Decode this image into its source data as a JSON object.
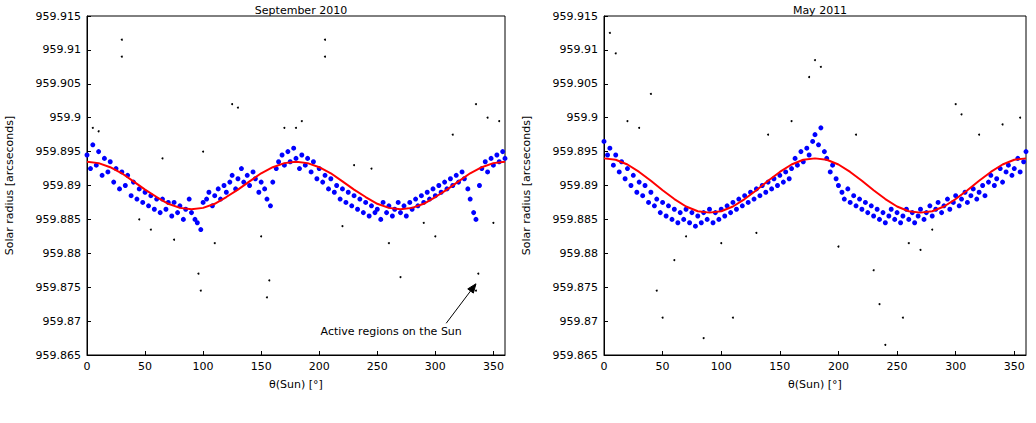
{
  "chart_data": [
    {
      "type": "scatter",
      "title": "September 2010",
      "x_label": "θ(Sun) [°]",
      "y_label": "Solar radius [arcseconds]",
      "xlim": [
        0,
        360
      ],
      "xticks": [
        0,
        50,
        100,
        150,
        200,
        250,
        300,
        350
      ],
      "ylim": [
        959.865,
        959.915
      ],
      "yticks": [
        959.865,
        959.87,
        959.875,
        959.88,
        959.885,
        959.89,
        959.895,
        959.9,
        959.905,
        959.91,
        959.915
      ],
      "grid": false,
      "series": [
        {
          "type": "scatter",
          "color": "#000000",
          "marker": "point",
          "x": [
            30,
            30,
            205,
            205,
            155,
            157,
            335,
            337,
            98,
            96,
            270,
            125,
            130,
            335,
            345,
            10,
            55,
            75,
            110,
            180,
            220,
            290,
            315,
            355,
            65,
            245,
            5,
            185,
            260,
            100,
            170,
            45,
            150,
            230,
            300,
            350
          ],
          "values": [
            959.9115,
            959.909,
            959.9115,
            959.909,
            959.8735,
            959.876,
            959.8745,
            959.877,
            959.8745,
            959.877,
            959.8765,
            959.902,
            959.9015,
            959.902,
            959.9,
            959.898,
            959.8835,
            959.882,
            959.8815,
            959.8985,
            959.884,
            959.8845,
            959.8975,
            959.8995,
            959.894,
            959.8925,
            959.8985,
            959.8995,
            959.8815,
            959.895,
            959.8985,
            959.885,
            959.8825,
            959.893,
            959.8825,
            959.8845
          ]
        },
        {
          "type": "scatter",
          "color": "#0000ff",
          "marker": "circle",
          "x": [
            0,
            3,
            5,
            8,
            10,
            13,
            15,
            18,
            20,
            23,
            25,
            28,
            30,
            33,
            35,
            38,
            40,
            43,
            45,
            48,
            50,
            53,
            55,
            58,
            60,
            63,
            65,
            68,
            70,
            73,
            75,
            78,
            80,
            83,
            85,
            88,
            90,
            93,
            95,
            98,
            100,
            103,
            105,
            108,
            110,
            113,
            115,
            118,
            120,
            123,
            125,
            128,
            130,
            133,
            135,
            138,
            140,
            143,
            145,
            148,
            150,
            153,
            155,
            158,
            160,
            163,
            165,
            168,
            170,
            173,
            175,
            178,
            180,
            183,
            185,
            188,
            190,
            193,
            195,
            198,
            200,
            203,
            205,
            208,
            210,
            213,
            215,
            218,
            220,
            223,
            225,
            228,
            230,
            233,
            235,
            238,
            240,
            243,
            245,
            248,
            250,
            253,
            255,
            258,
            260,
            263,
            265,
            268,
            270,
            273,
            275,
            278,
            280,
            283,
            285,
            288,
            290,
            293,
            295,
            298,
            300,
            303,
            305,
            308,
            310,
            313,
            315,
            318,
            320,
            323,
            325,
            328,
            330,
            333,
            335,
            338,
            340,
            343,
            345,
            348,
            350,
            353,
            355,
            358,
            360
          ],
          "values": [
            959.8945,
            959.8925,
            959.896,
            959.893,
            959.895,
            959.8915,
            959.894,
            959.892,
            959.8935,
            959.8905,
            959.8925,
            959.8895,
            959.892,
            959.89,
            959.8915,
            959.8885,
            959.8905,
            959.888,
            959.8895,
            959.8875,
            959.889,
            959.887,
            959.8885,
            959.8865,
            959.888,
            959.886,
            959.888,
            959.8865,
            959.8875,
            959.8855,
            959.8875,
            959.886,
            959.887,
            959.885,
            959.8865,
            959.888,
            959.886,
            959.885,
            959.8845,
            959.8835,
            959.8875,
            959.888,
            959.889,
            959.887,
            959.8885,
            959.8895,
            959.888,
            959.89,
            959.889,
            959.8905,
            959.8915,
            959.8895,
            959.891,
            959.8925,
            959.8905,
            959.8915,
            959.89,
            959.892,
            959.891,
            959.889,
            959.8905,
            959.8895,
            959.888,
            959.887,
            959.8905,
            959.8925,
            959.8935,
            959.8945,
            959.893,
            959.895,
            959.8935,
            959.8955,
            959.894,
            959.8925,
            959.8945,
            959.893,
            959.894,
            959.892,
            959.8935,
            959.891,
            959.8925,
            959.8905,
            959.8915,
            959.8895,
            959.891,
            959.889,
            959.89,
            959.888,
            959.8895,
            959.8875,
            959.889,
            959.887,
            959.8885,
            959.8865,
            959.888,
            959.886,
            959.8875,
            959.8855,
            959.887,
            959.886,
            959.8865,
            959.885,
            959.8875,
            959.886,
            959.887,
            959.8855,
            959.8865,
            959.8875,
            959.886,
            959.887,
            959.8855,
            959.8875,
            959.8865,
            959.888,
            959.887,
            959.8885,
            959.8875,
            959.889,
            959.888,
            959.8895,
            959.8885,
            959.89,
            959.889,
            959.8905,
            959.8895,
            959.891,
            959.89,
            959.8915,
            959.8905,
            959.892,
            959.891,
            959.8895,
            959.888,
            959.886,
            959.885,
            959.89,
            959.8925,
            959.8935,
            959.892,
            959.894,
            959.893,
            959.8945,
            959.8935,
            959.895,
            959.894
          ]
        },
        {
          "type": "line",
          "color": "#ff0000",
          "marker": "none",
          "line_style": "solid",
          "x": [
            0,
            10,
            20,
            30,
            40,
            50,
            60,
            70,
            80,
            90,
            100,
            110,
            120,
            130,
            140,
            150,
            160,
            170,
            180,
            190,
            200,
            210,
            220,
            230,
            240,
            250,
            260,
            270,
            280,
            290,
            300,
            310,
            320,
            330,
            340,
            350,
            360
          ],
          "values": [
            959.8935,
            959.8933,
            959.8927,
            959.8918,
            959.8906,
            959.8894,
            959.8883,
            959.8873,
            959.8867,
            959.8865,
            959.8867,
            959.8873,
            959.8883,
            959.8894,
            959.8906,
            959.8918,
            959.8927,
            959.8933,
            959.8935,
            959.8933,
            959.8927,
            959.8918,
            959.8906,
            959.8894,
            959.8883,
            959.8873,
            959.8867,
            959.8865,
            959.8867,
            959.8873,
            959.8883,
            959.8894,
            959.8906,
            959.8918,
            959.8927,
            959.8933,
            959.8935
          ]
        }
      ],
      "annotations": [
        {
          "text": "Active regions on the Sun",
          "xy": [
            335,
            959.8755
          ],
          "xytext": [
            262,
            959.8685
          ]
        }
      ]
    },
    {
      "type": "scatter",
      "title": "May 2011",
      "x_label": "θ(Sun) [°]",
      "y_label": "Solar radius [arcseconds]",
      "xlim": [
        0,
        360
      ],
      "xticks": [
        0,
        50,
        100,
        150,
        200,
        250,
        300,
        350
      ],
      "ylim": [
        959.865,
        959.915
      ],
      "yticks": [
        959.865,
        959.87,
        959.875,
        959.88,
        959.885,
        959.89,
        959.895,
        959.9,
        959.905,
        959.91,
        959.915
      ],
      "grid": false,
      "series": [
        {
          "type": "scatter",
          "color": "#000000",
          "marker": "point",
          "x": [
            5,
            10,
            40,
            180,
            185,
            175,
            60,
            45,
            50,
            85,
            110,
            230,
            235,
            240,
            255,
            280,
            300,
            305,
            355,
            20,
            30,
            70,
            100,
            140,
            160,
            200,
            260,
            320,
            340,
            130,
            215,
            270
          ],
          "values": [
            959.9125,
            959.9095,
            959.9035,
            959.9085,
            959.9075,
            959.906,
            959.879,
            959.8745,
            959.8705,
            959.8675,
            959.8705,
            959.8775,
            959.8725,
            959.8665,
            959.8705,
            959.8835,
            959.902,
            959.9005,
            959.9,
            959.8995,
            959.8985,
            959.8825,
            959.8815,
            959.8975,
            959.8995,
            959.881,
            959.8815,
            959.8975,
            959.899,
            959.883,
            959.8975,
            959.8805
          ]
        },
        {
          "type": "scatter",
          "color": "#0000ff",
          "marker": "circle",
          "x": [
            0,
            3,
            5,
            8,
            10,
            13,
            15,
            18,
            20,
            23,
            25,
            28,
            30,
            33,
            35,
            38,
            40,
            43,
            45,
            48,
            50,
            53,
            55,
            58,
            60,
            63,
            65,
            68,
            70,
            73,
            75,
            78,
            80,
            83,
            85,
            88,
            90,
            93,
            95,
            98,
            100,
            103,
            105,
            108,
            110,
            113,
            115,
            118,
            120,
            123,
            125,
            128,
            130,
            133,
            135,
            138,
            140,
            143,
            145,
            148,
            150,
            153,
            155,
            158,
            160,
            163,
            165,
            168,
            170,
            173,
            175,
            178,
            180,
            183,
            185,
            188,
            190,
            193,
            195,
            198,
            200,
            203,
            205,
            208,
            210,
            213,
            215,
            218,
            220,
            223,
            225,
            228,
            230,
            233,
            235,
            238,
            240,
            243,
            245,
            248,
            250,
            253,
            255,
            258,
            260,
            263,
            265,
            268,
            270,
            273,
            275,
            278,
            280,
            283,
            285,
            288,
            290,
            293,
            295,
            298,
            300,
            303,
            305,
            308,
            310,
            313,
            315,
            318,
            320,
            323,
            325,
            328,
            330,
            333,
            335,
            338,
            340,
            343,
            345,
            348,
            350,
            353,
            355,
            358,
            360
          ],
          "values": [
            959.8965,
            959.8945,
            959.8955,
            959.893,
            959.8945,
            959.892,
            959.8935,
            959.891,
            959.8925,
            959.89,
            959.8915,
            959.889,
            959.8905,
            959.8885,
            959.89,
            959.8875,
            959.889,
            959.887,
            959.888,
            959.886,
            959.8875,
            959.8855,
            959.887,
            959.885,
            959.8865,
            959.8845,
            959.886,
            959.885,
            959.8865,
            959.8845,
            959.886,
            959.884,
            959.8855,
            959.8845,
            959.886,
            959.885,
            959.8865,
            959.8845,
            959.886,
            959.885,
            959.8865,
            959.8855,
            959.887,
            959.886,
            959.8875,
            959.8865,
            959.888,
            959.887,
            959.8885,
            959.8875,
            959.889,
            959.888,
            959.8895,
            959.8885,
            959.89,
            959.889,
            959.8905,
            959.8895,
            959.891,
            959.89,
            959.8915,
            959.8905,
            959.892,
            959.891,
            959.8925,
            959.894,
            959.893,
            959.895,
            959.8935,
            959.8955,
            959.8945,
            959.8965,
            959.8975,
            959.896,
            959.8985,
            959.895,
            959.894,
            959.892,
            959.893,
            959.891,
            959.89,
            959.889,
            959.888,
            959.8895,
            959.8875,
            959.8885,
            959.887,
            959.888,
            959.8865,
            959.8875,
            959.886,
            959.887,
            959.8855,
            959.8865,
            959.885,
            959.886,
            959.8845,
            959.8855,
            959.8865,
            959.885,
            959.886,
            959.8845,
            959.8855,
            959.8865,
            959.885,
            959.886,
            959.8845,
            959.8855,
            959.8865,
            959.885,
            959.886,
            959.887,
            959.8855,
            959.8865,
            959.8875,
            959.886,
            959.887,
            959.888,
            959.8865,
            959.8875,
            959.8885,
            959.887,
            959.888,
            959.889,
            959.8875,
            959.8885,
            959.8895,
            959.888,
            959.889,
            959.89,
            959.8885,
            959.8905,
            959.8915,
            959.89,
            959.891,
            959.8925,
            959.8905,
            959.892,
            959.893,
            959.8915,
            959.8925,
            959.894,
            959.892,
            959.8935,
            959.895
          ]
        },
        {
          "type": "line",
          "color": "#ff0000",
          "marker": "none",
          "line_style": "solid",
          "x": [
            0,
            10,
            20,
            30,
            40,
            50,
            60,
            70,
            80,
            90,
            100,
            110,
            120,
            130,
            140,
            150,
            160,
            170,
            180,
            190,
            200,
            210,
            220,
            230,
            240,
            250,
            260,
            270,
            280,
            290,
            300,
            310,
            320,
            330,
            340,
            350,
            360
          ],
          "values": [
            959.894,
            959.8938,
            959.8931,
            959.892,
            959.8907,
            959.8893,
            959.888,
            959.8869,
            959.8862,
            959.886,
            959.8862,
            959.8869,
            959.888,
            959.8893,
            959.8907,
            959.892,
            959.8931,
            959.8938,
            959.894,
            959.8938,
            959.8931,
            959.892,
            959.8907,
            959.8893,
            959.888,
            959.8869,
            959.8862,
            959.886,
            959.8862,
            959.8869,
            959.888,
            959.8893,
            959.8907,
            959.892,
            959.8931,
            959.8938,
            959.894
          ]
        }
      ]
    }
  ]
}
